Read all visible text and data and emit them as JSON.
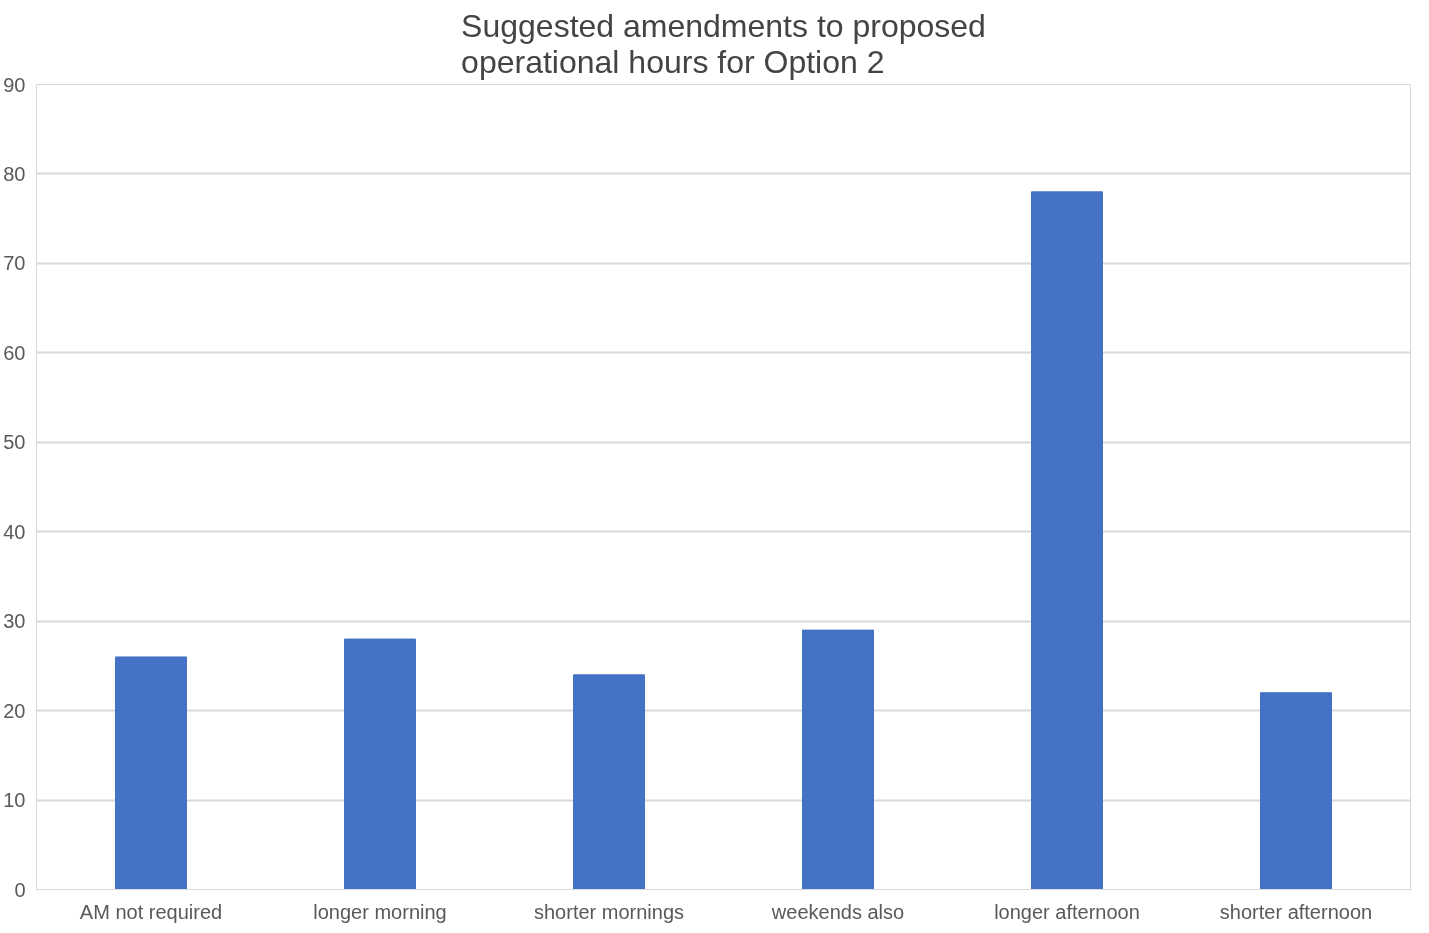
{
  "chart_data": {
    "type": "bar",
    "title": "Suggested amendments to proposed\noperational hours for Option 2",
    "categories": [
      "AM not required",
      "longer morning",
      "shorter mornings",
      "weekends also",
      "longer afternoon",
      "shorter afternoon"
    ],
    "values": [
      26,
      28,
      24,
      29,
      78,
      22
    ],
    "color": "#4472c4",
    "ylim": [
      0,
      90
    ],
    "yticks": [
      0,
      10,
      20,
      30,
      40,
      50,
      60,
      70,
      80,
      90
    ],
    "grid": "y"
  }
}
